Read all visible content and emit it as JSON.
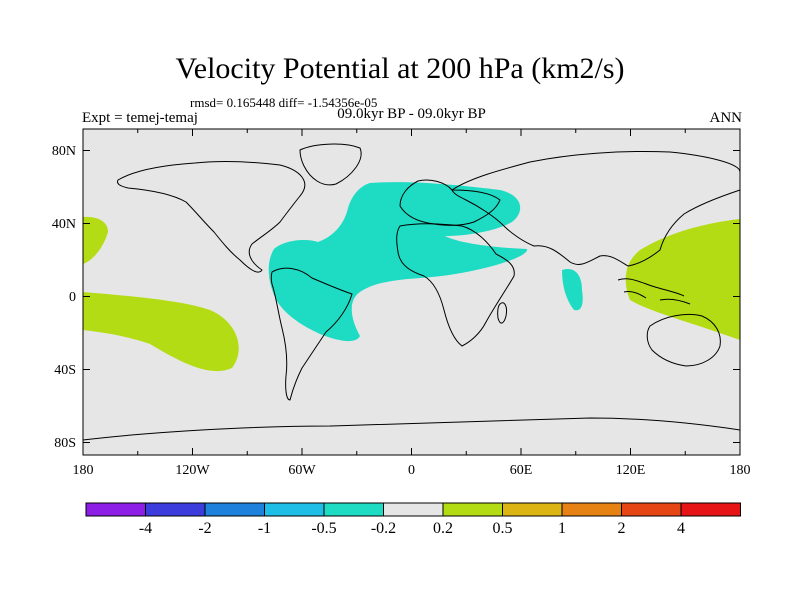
{
  "title": "Velocity Potential at 200 hPa (km2/s)",
  "stats": "rmsd= 0.165448 diff= -1.54356e-05",
  "experiment": "Expt = temej-temaj",
  "period": "09.0kyr BP - 09.0kyr BP",
  "season": "ANN",
  "map": {
    "x_tick_labels": [
      "180",
      "120W",
      "60W",
      "0",
      "60E",
      "120E",
      "180"
    ],
    "y_tick_labels": [
      "80N",
      "40N",
      "0",
      "40S",
      "80S"
    ],
    "ocean_color": "#e6e6e6",
    "coast_color": "#000000"
  },
  "colorbar": {
    "colors": [
      "#8c1ee6",
      "#3c3cdc",
      "#1e82dc",
      "#1ebee6",
      "#1edcc3",
      "#e6e6e6",
      "#b4dc14",
      "#dcb414",
      "#e68214",
      "#e64614",
      "#e61414"
    ],
    "labels": [
      "-4",
      "-2",
      "-1",
      "-0.5",
      "-0.2",
      "0.2",
      "0.5",
      "1",
      "2",
      "4"
    ]
  }
}
